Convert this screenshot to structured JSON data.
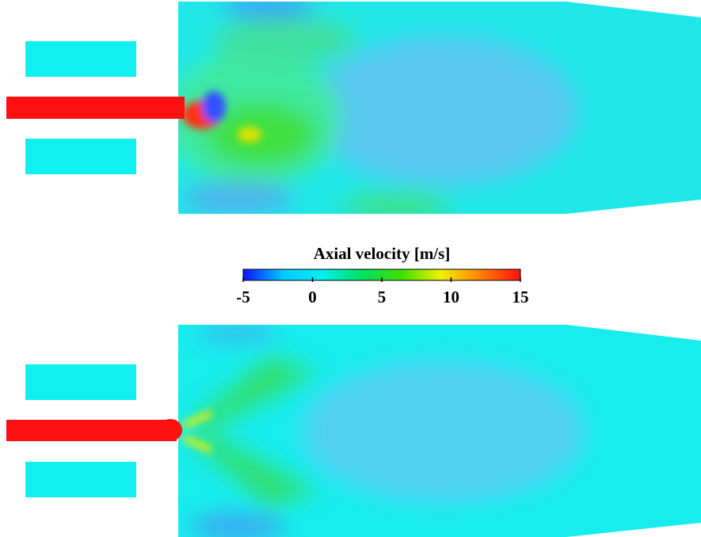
{
  "colorbar": {
    "title": "Axial velocity [m/s]",
    "range": [
      -5,
      15
    ],
    "ticks": [
      -5,
      0,
      5,
      10,
      15
    ],
    "colors": [
      "#1010ff",
      "#00c8ff",
      "#00f0f0",
      "#00e060",
      "#40e000",
      "#f0f000",
      "#ff8000",
      "#ff1010"
    ]
  }
}
